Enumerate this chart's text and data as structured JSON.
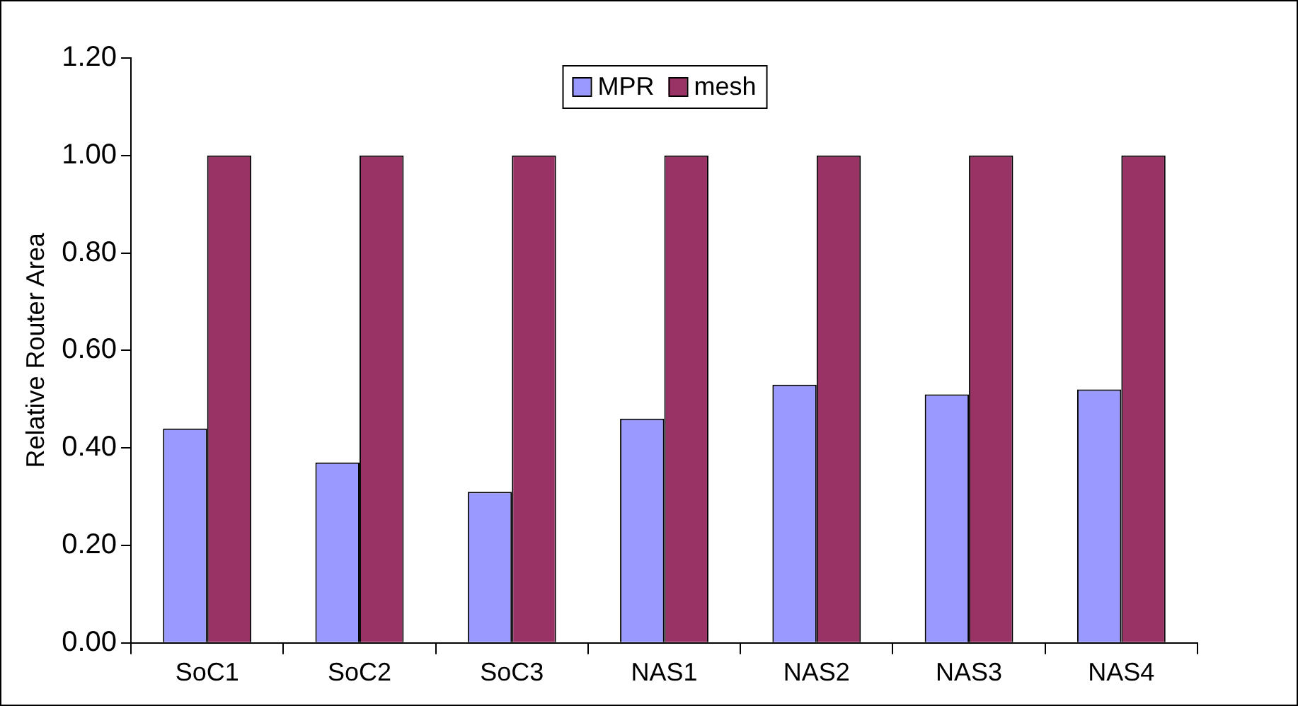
{
  "chart_data": {
    "type": "bar",
    "ylabel": "Relative Router Area",
    "categories": [
      "SoC1",
      "SoC2",
      "SoC3",
      "NAS1",
      "NAS2",
      "NAS3",
      "NAS4"
    ],
    "series": [
      {
        "name": "MPR",
        "color": "#9999ff",
        "values": [
          0.44,
          0.37,
          0.31,
          0.46,
          0.53,
          0.51,
          0.52
        ]
      },
      {
        "name": "mesh",
        "color": "#993366",
        "values": [
          1.0,
          1.0,
          1.0,
          1.0,
          1.0,
          1.0,
          1.0
        ]
      }
    ],
    "ylim": [
      0,
      1.2
    ],
    "yticks": [
      {
        "value": 0,
        "label": "0.00"
      },
      {
        "value": 0.2,
        "label": "0.20"
      },
      {
        "value": 0.4,
        "label": "0.40"
      },
      {
        "value": 0.6,
        "label": "0.60"
      },
      {
        "value": 0.8,
        "label": "0.80"
      },
      {
        "value": 1.0,
        "label": "1.00"
      },
      {
        "value": 1.2,
        "label": "1.20"
      }
    ],
    "grid": false,
    "legend": "top"
  }
}
